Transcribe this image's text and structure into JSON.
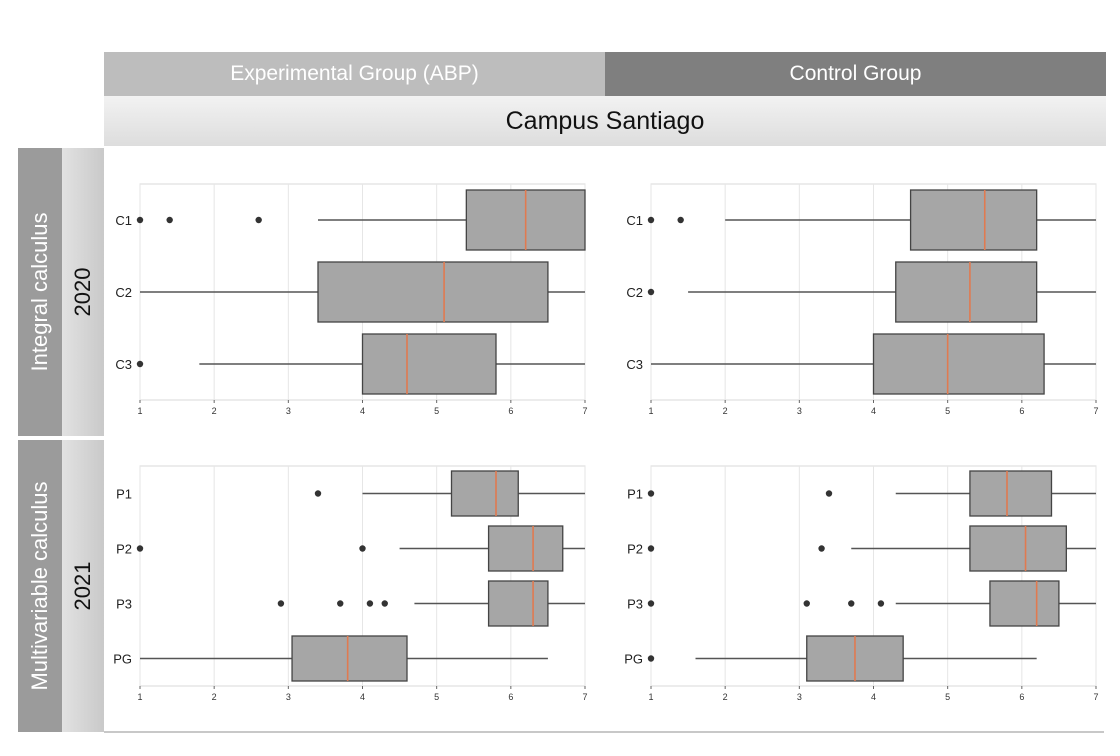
{
  "header": {
    "experimental_label": "Experimental Group (ABP)",
    "control_label": "Control Group",
    "campus_label": "Campus Santiago"
  },
  "rows": [
    {
      "course": "Integral calculus",
      "year": "2020"
    },
    {
      "course": "Multivariable calculus",
      "year": "2021"
    }
  ],
  "colors": {
    "box_fill": "#a6a6a6",
    "median": "#e07a50",
    "whisker": "#555555",
    "outlier": "#333333"
  },
  "chart_data": [
    {
      "type": "boxplot",
      "orientation": "horizontal",
      "group": "Experimental Group (ABP)",
      "course": "Integral calculus",
      "year": "2020",
      "xlim": [
        1,
        7
      ],
      "xticks": [
        1,
        2,
        3,
        4,
        5,
        6,
        7
      ],
      "grid": true,
      "categories": [
        "C1",
        "C2",
        "C3"
      ],
      "boxes": [
        {
          "label": "C1",
          "whislo": 3.4,
          "q1": 5.4,
          "med": 6.2,
          "q3": 7.0,
          "whishi": 7.0,
          "fliers": [
            1.0,
            1.4,
            2.6
          ]
        },
        {
          "label": "C2",
          "whislo": 1.0,
          "q1": 3.4,
          "med": 5.1,
          "q3": 6.5,
          "whishi": 7.0,
          "fliers": []
        },
        {
          "label": "C3",
          "whislo": 1.8,
          "q1": 4.0,
          "med": 4.6,
          "q3": 5.8,
          "whishi": 7.0,
          "fliers": [
            1.0
          ]
        }
      ]
    },
    {
      "type": "boxplot",
      "orientation": "horizontal",
      "group": "Control Group",
      "course": "Integral calculus",
      "year": "2020",
      "xlim": [
        1,
        7
      ],
      "xticks": [
        1,
        2,
        3,
        4,
        5,
        6,
        7
      ],
      "grid": true,
      "categories": [
        "C1",
        "C2",
        "C3"
      ],
      "boxes": [
        {
          "label": "C1",
          "whislo": 2.0,
          "q1": 4.5,
          "med": 5.5,
          "q3": 6.2,
          "whishi": 7.0,
          "fliers": [
            1.0,
            1.4
          ]
        },
        {
          "label": "C2",
          "whislo": 1.5,
          "q1": 4.3,
          "med": 5.3,
          "q3": 6.2,
          "whishi": 7.0,
          "fliers": [
            1.0
          ]
        },
        {
          "label": "C3",
          "whislo": 1.0,
          "q1": 4.0,
          "med": 5.0,
          "q3": 6.3,
          "whishi": 7.0,
          "fliers": []
        }
      ]
    },
    {
      "type": "boxplot",
      "orientation": "horizontal",
      "group": "Experimental Group (ABP)",
      "course": "Multivariable calculus",
      "year": "2021",
      "xlim": [
        1,
        7
      ],
      "xticks": [
        1,
        2,
        3,
        4,
        5,
        6,
        7
      ],
      "grid": true,
      "categories": [
        "P1",
        "P2",
        "P3",
        "PG"
      ],
      "boxes": [
        {
          "label": "P1",
          "whislo": 4.0,
          "q1": 5.2,
          "med": 5.8,
          "q3": 6.1,
          "whishi": 7.0,
          "fliers": [
            3.4
          ]
        },
        {
          "label": "P2",
          "whislo": 4.5,
          "q1": 5.7,
          "med": 6.3,
          "q3": 6.7,
          "whishi": 7.0,
          "fliers": [
            1.0,
            4.0
          ]
        },
        {
          "label": "P3",
          "whislo": 4.7,
          "q1": 5.7,
          "med": 6.3,
          "q3": 6.5,
          "whishi": 7.0,
          "fliers": [
            2.9,
            3.7,
            4.1,
            4.3
          ]
        },
        {
          "label": "PG",
          "whislo": 1.0,
          "q1": 3.05,
          "med": 3.8,
          "q3": 4.6,
          "whishi": 6.5,
          "fliers": []
        }
      ]
    },
    {
      "type": "boxplot",
      "orientation": "horizontal",
      "group": "Control Group",
      "course": "Multivariable calculus",
      "year": "2021",
      "xlim": [
        1,
        7
      ],
      "xticks": [
        1,
        2,
        3,
        4,
        5,
        6,
        7
      ],
      "grid": true,
      "categories": [
        "P1",
        "P2",
        "P3",
        "PG"
      ],
      "boxes": [
        {
          "label": "P1",
          "whislo": 4.3,
          "q1": 5.3,
          "med": 5.8,
          "q3": 6.4,
          "whishi": 7.0,
          "fliers": [
            1.0,
            3.4
          ]
        },
        {
          "label": "P2",
          "whislo": 3.7,
          "q1": 5.3,
          "med": 6.05,
          "q3": 6.6,
          "whishi": 7.0,
          "fliers": [
            1.0,
            3.3
          ]
        },
        {
          "label": "P3",
          "whislo": 4.3,
          "q1": 5.57,
          "med": 6.2,
          "q3": 6.5,
          "whishi": 7.0,
          "fliers": [
            1.0,
            3.1,
            3.7,
            4.1
          ]
        },
        {
          "label": "PG",
          "whislo": 1.6,
          "q1": 3.1,
          "med": 3.75,
          "q3": 4.4,
          "whishi": 6.2,
          "fliers": [
            1.0
          ]
        }
      ]
    }
  ]
}
